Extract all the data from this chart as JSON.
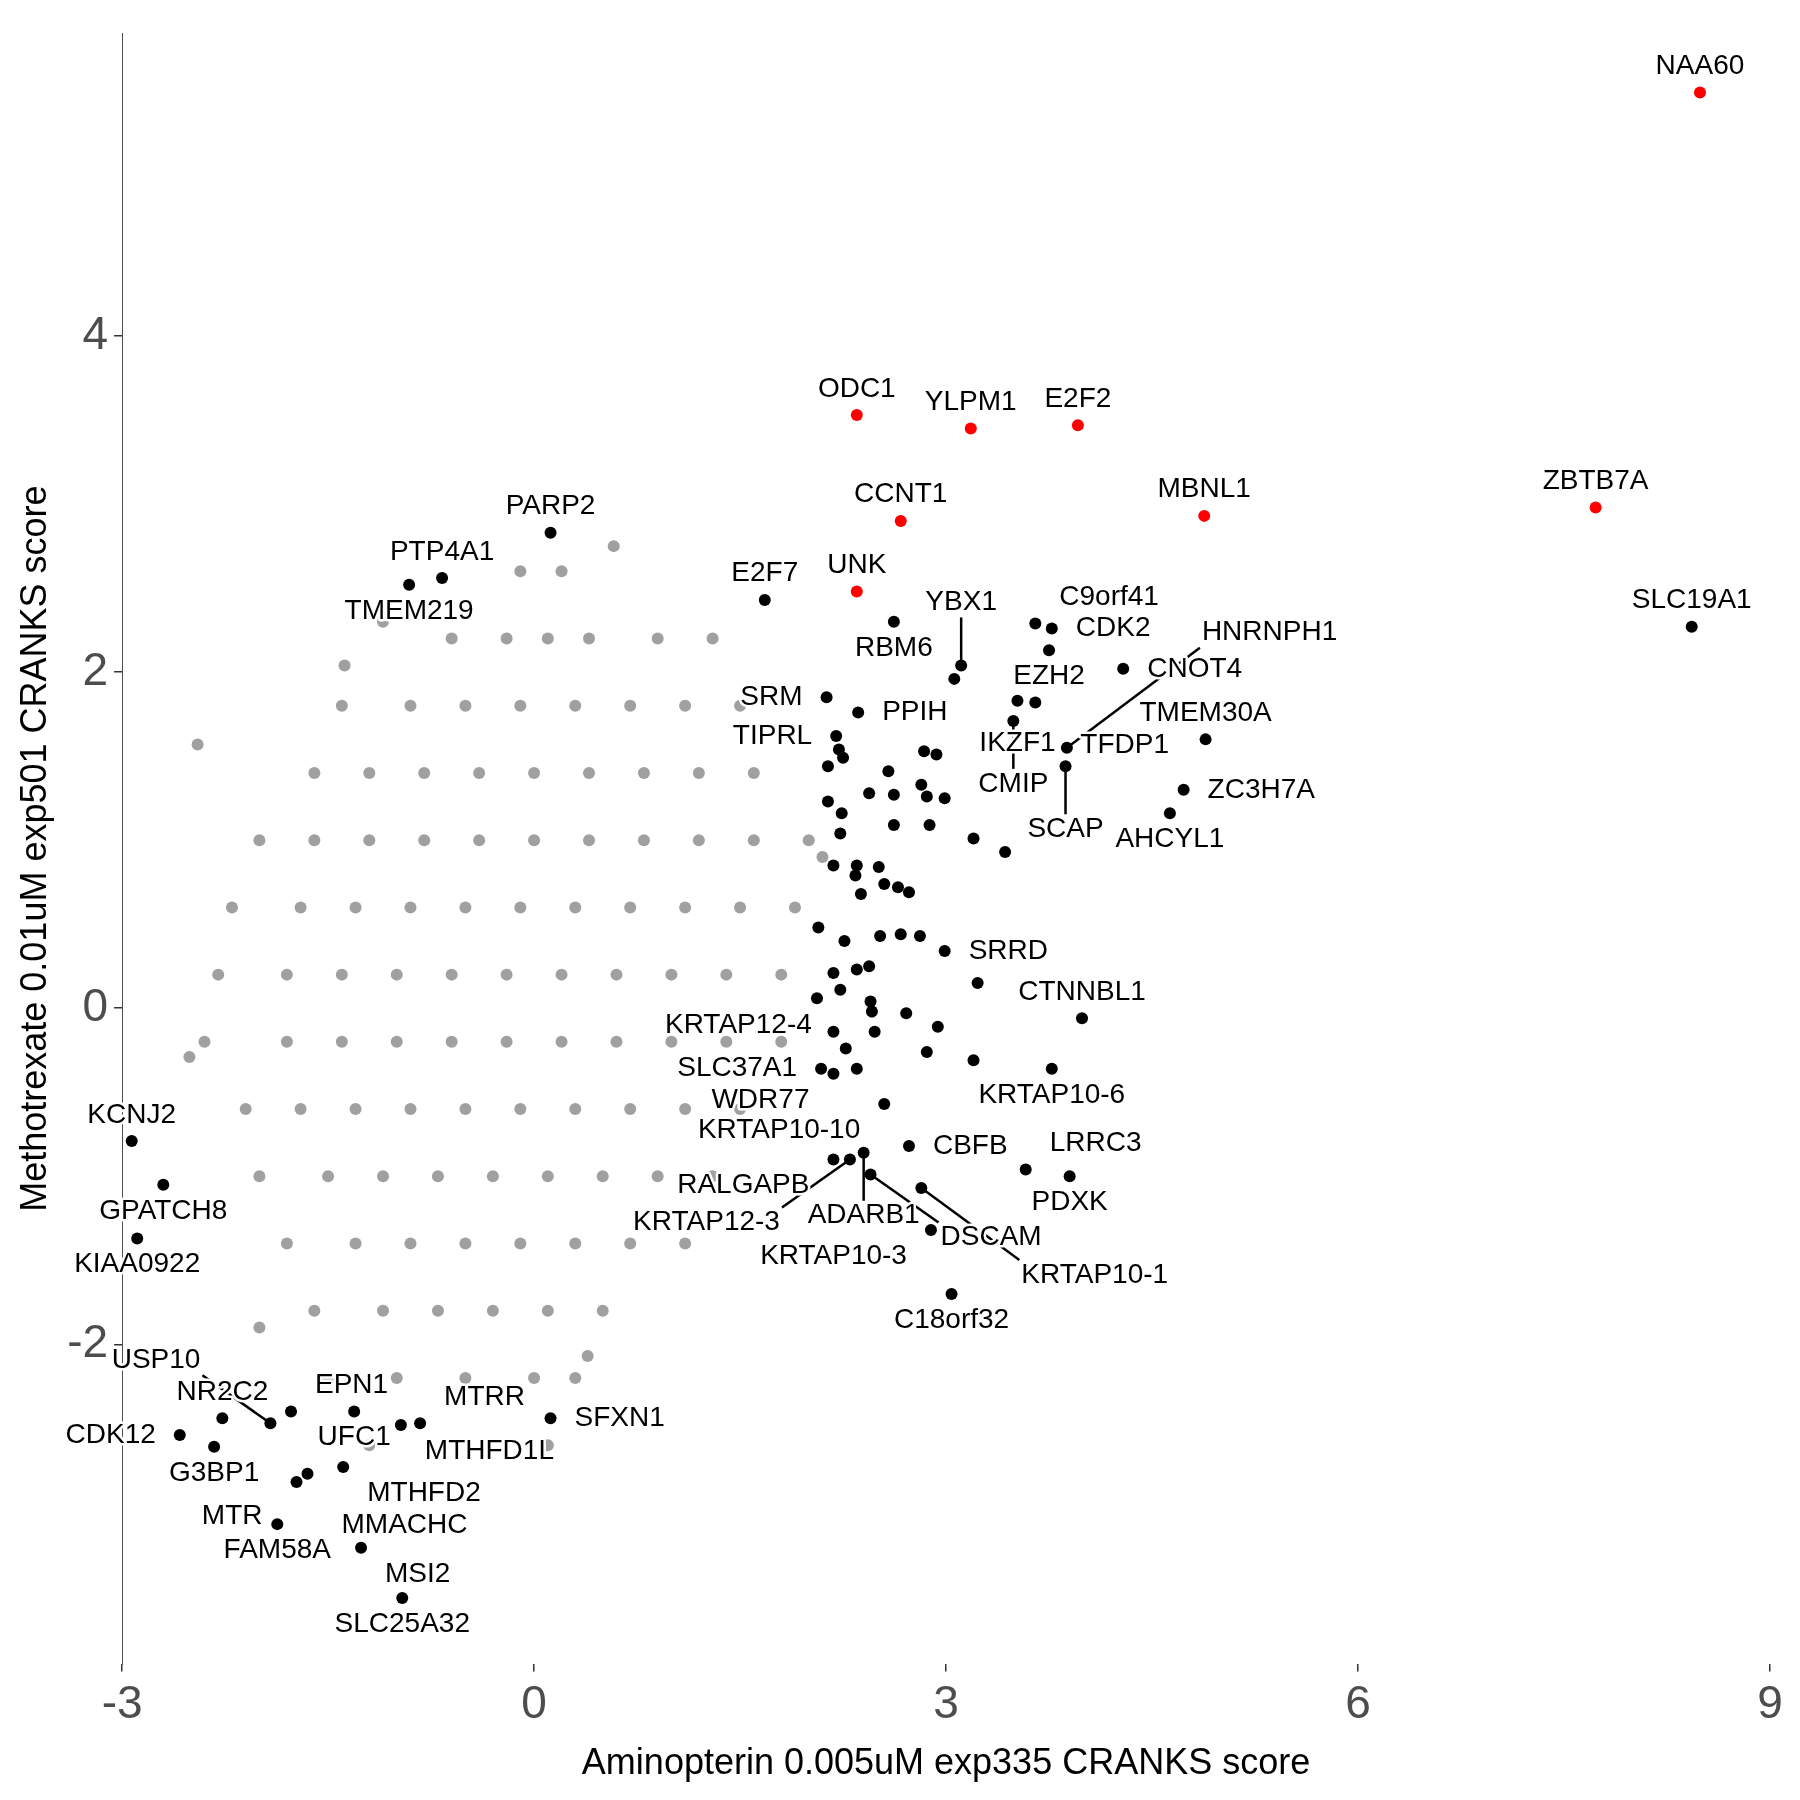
{
  "chart_data": {
    "type": "scatter",
    "xlabel": "Aminopterin 0.005uM exp335 CRANKS score",
    "ylabel": "Methotrexate 0.01uM exp501 CRANKS score",
    "xlim": [
      -3,
      9
    ],
    "ylim": [
      -3.9,
      5.8
    ],
    "xticks": [
      -3,
      0,
      3,
      6,
      9
    ],
    "yticks": [
      -2,
      0,
      2,
      4
    ],
    "grid": false,
    "legend": false,
    "marker": "circle",
    "series": [
      {
        "color": "#a0a0a0",
        "x": [
          -0.1,
          0.2,
          0.58,
          -0.6,
          -0.2,
          0.1,
          0.4,
          0.9,
          1.3,
          -1.4,
          -0.9,
          -0.5,
          -0.1,
          0.3,
          0.7,
          1.1,
          1.5,
          -1.6,
          -1.2,
          -0.8,
          -0.4,
          0,
          0.4,
          0.8,
          1.2,
          1.6,
          -2.0,
          -1.6,
          -1.2,
          -0.8,
          -0.4,
          0,
          0.4,
          0.8,
          1.2,
          1.6,
          2.0,
          -2.2,
          -1.7,
          -1.3,
          -0.9,
          -0.5,
          -0.1,
          0.3,
          0.7,
          1.1,
          1.5,
          1.9,
          -2.3,
          -1.8,
          -1.4,
          -1.0,
          -0.6,
          -0.2,
          0.2,
          0.6,
          1.0,
          1.4,
          1.8,
          -2.4,
          -1.8,
          -1.4,
          -1.0,
          -0.6,
          -0.2,
          0.2,
          0.6,
          1.0,
          1.4,
          1.8,
          -2.1,
          -1.7,
          -1.3,
          -0.9,
          -0.5,
          -0.1,
          0.3,
          0.7,
          1.1,
          1.5,
          -2.0,
          -1.5,
          -1.1,
          -0.7,
          -0.3,
          0.1,
          0.5,
          0.9,
          1.3,
          -1.8,
          -1.3,
          -0.9,
          -0.5,
          -0.1,
          0.3,
          0.7,
          1.1,
          -1.6,
          -1.1,
          -0.7,
          -0.3,
          0.1,
          0.5,
          -1.5,
          -1.0,
          -0.5,
          0.0,
          0.3,
          -1.2,
          0.1,
          -2.45,
          -1.38,
          -2.51,
          -2.0,
          0.39,
          2.1,
          -1.1
        ],
        "values": [
          2.6,
          2.6,
          2.75,
          2.2,
          2.2,
          2.2,
          2.2,
          2.2,
          2.2,
          1.8,
          1.8,
          1.8,
          1.8,
          1.8,
          1.8,
          1.8,
          1.8,
          1.4,
          1.4,
          1.4,
          1.4,
          1.4,
          1.4,
          1.4,
          1.4,
          1.4,
          1.0,
          1.0,
          1.0,
          1.0,
          1.0,
          1.0,
          1.0,
          1.0,
          1.0,
          1.0,
          1.0,
          0.6,
          0.6,
          0.6,
          0.6,
          0.6,
          0.6,
          0.6,
          0.6,
          0.6,
          0.6,
          0.6,
          0.2,
          0.2,
          0.2,
          0.2,
          0.2,
          0.2,
          0.2,
          0.2,
          0.2,
          0.2,
          0.2,
          -0.2,
          -0.2,
          -0.2,
          -0.2,
          -0.2,
          -0.2,
          -0.2,
          -0.2,
          -0.2,
          -0.2,
          -0.2,
          -0.6,
          -0.6,
          -0.6,
          -0.6,
          -0.6,
          -0.6,
          -0.6,
          -0.6,
          -0.6,
          -0.6,
          -1.0,
          -1.0,
          -1.0,
          -1.0,
          -1.0,
          -1.0,
          -1.0,
          -1.0,
          -1.0,
          -1.4,
          -1.4,
          -1.4,
          -1.4,
          -1.4,
          -1.4,
          -1.4,
          -1.4,
          -1.8,
          -1.8,
          -1.8,
          -1.8,
          -1.8,
          -1.8,
          -2.2,
          -2.2,
          -2.2,
          -2.2,
          -2.2,
          -2.6,
          -2.6,
          1.57,
          2.04,
          -0.29,
          -1.9,
          -2.07,
          0.9,
          2.3
        ]
      },
      {
        "color": "#000000",
        "x": [
          0.12,
          -0.67,
          -0.91,
          1.68,
          8.43,
          2.62,
          2.13,
          2.36,
          2.2,
          3.11,
          3.06,
          3.65,
          3.77,
          3.75,
          4.29,
          3.65,
          3.52,
          3.49,
          4.89,
          3.88,
          3.87,
          4.73,
          4.63,
          2.22,
          2.25,
          2.84,
          2.93,
          2.14,
          2.58,
          2.82,
          2.44,
          2.62,
          2.86,
          2.99,
          2.14,
          2.24,
          2.62,
          2.88,
          2.23,
          3.2,
          3.43,
          2.18,
          2.35,
          2.51,
          2.34,
          2.55,
          2.38,
          2.65,
          2.73,
          2.07,
          2.52,
          2.67,
          2.26,
          2.81,
          2.99,
          2.18,
          2.35,
          2.44,
          3.23,
          2.06,
          2.23,
          2.45,
          2.46,
          2.71,
          2.94,
          2.18,
          2.48,
          2.27,
          2.86,
          3.2,
          3.99,
          3.77,
          2.09,
          2.18,
          2.35,
          2.55,
          2.18,
          2.3,
          2.4,
          2.45,
          2.73,
          3.58,
          3.9,
          2.82,
          2.89,
          3.04,
          -2.93,
          -2.7,
          -2.89,
          -2.27,
          -2.58,
          -2.33,
          -1.77,
          -1.92,
          -1.31,
          -0.97,
          -0.83,
          -1.39,
          -1.73,
          -1.87,
          -1.26,
          -1.65,
          0.12,
          -0.96
        ],
        "values": [
          2.83,
          2.56,
          2.52,
          2.43,
          2.27,
          2.3,
          1.85,
          1.76,
          1.62,
          2.04,
          1.96,
          2.29,
          2.26,
          2.13,
          2.02,
          1.82,
          1.83,
          1.71,
          1.6,
          1.55,
          1.44,
          1.3,
          1.16,
          1.54,
          1.49,
          1.53,
          1.51,
          1.44,
          1.41,
          1.33,
          1.28,
          1.27,
          1.26,
          1.25,
          1.23,
          1.16,
          1.09,
          1.09,
          1.04,
          1.01,
          0.93,
          0.85,
          0.85,
          0.84,
          0.79,
          0.74,
          0.68,
          0.72,
          0.69,
          0.48,
          0.43,
          0.44,
          0.4,
          0.43,
          0.34,
          0.21,
          0.23,
          0.25,
          0.15,
          0.06,
          0.11,
          0.04,
          -0.02,
          -0.03,
          -0.11,
          -0.14,
          -0.14,
          -0.24,
          -0.26,
          -0.31,
          -0.06,
          -0.36,
          -0.36,
          -0.39,
          -0.36,
          -0.57,
          -0.9,
          -0.9,
          -0.86,
          -0.99,
          -0.82,
          -0.96,
          -1.0,
          -1.07,
          -1.32,
          -1.7,
          -0.79,
          -1.05,
          -1.37,
          -2.44,
          -2.54,
          -2.61,
          -2.4,
          -2.47,
          -2.4,
          -2.48,
          -2.47,
          -2.73,
          -2.82,
          -3.07,
          -3.21,
          -2.77,
          -2.44,
          -3.51
        ]
      },
      {
        "color": "#ff0000",
        "x": [
          8.49,
          2.35,
          3.18,
          3.96,
          4.88,
          7.73,
          2.67,
          2.35
        ],
        "values": [
          5.45,
          3.53,
          3.45,
          3.47,
          2.93,
          2.98,
          2.9,
          2.48
        ]
      }
    ],
    "annotations": [
      {
        "text": "NAA60",
        "x": 8.49,
        "y": 5.45
      },
      {
        "text": "ODC1",
        "x": 2.35,
        "y": 3.53
      },
      {
        "text": "YLPM1",
        "x": 3.18,
        "y": 3.45
      },
      {
        "text": "E2F2",
        "x": 3.96,
        "y": 3.47
      },
      {
        "text": "MBNL1",
        "x": 4.88,
        "y": 2.93
      },
      {
        "text": "ZBTB7A",
        "x": 7.73,
        "y": 2.98
      },
      {
        "text": "CCNT1",
        "x": 2.67,
        "y": 2.9
      },
      {
        "text": "UNK",
        "x": 2.35,
        "y": 2.48
      },
      {
        "text": "PARP2",
        "x": 0.12,
        "y": 2.83
      },
      {
        "text": "PTP4A1",
        "x": -0.67,
        "y": 2.56
      },
      {
        "text": "TMEM219",
        "x": -0.91,
        "y": 2.52
      },
      {
        "text": "E2F7",
        "x": 1.68,
        "y": 2.43
      },
      {
        "text": "SLC19A1",
        "x": 8.43,
        "y": 2.27
      },
      {
        "text": "RBM6",
        "x": 2.62,
        "y": 2.3
      },
      {
        "text": "SRM",
        "x": 2.13,
        "y": 1.85
      },
      {
        "text": "PPIH",
        "x": 2.36,
        "y": 1.76
      },
      {
        "text": "TIPRL",
        "x": 2.2,
        "y": 1.62
      },
      {
        "text": "YBX1",
        "x": 3.11,
        "y": 2.04
      },
      {
        "text": "C9orf41",
        "x": 3.65,
        "y": 2.29
      },
      {
        "text": "CDK2",
        "x": 3.77,
        "y": 2.26
      },
      {
        "text": "EZH2",
        "x": 3.75,
        "y": 2.13
      },
      {
        "text": "CNOT4",
        "x": 4.29,
        "y": 2.02
      },
      {
        "text": "TFDP1",
        "x": 3.65,
        "y": 1.82
      },
      {
        "text": "IKZF1",
        "x": 3.52,
        "y": 1.83
      },
      {
        "text": "CMIP",
        "x": 3.49,
        "y": 1.71
      },
      {
        "text": "TMEM30A",
        "x": 4.89,
        "y": 1.6
      },
      {
        "text": "HNRNPH1",
        "x": 3.88,
        "y": 1.55
      },
      {
        "text": "SCAP",
        "x": 3.87,
        "y": 1.44
      },
      {
        "text": "ZC3H7A",
        "x": 4.73,
        "y": 1.3
      },
      {
        "text": "AHCYL1",
        "x": 4.63,
        "y": 1.16
      },
      {
        "text": "SRRD",
        "x": 2.99,
        "y": 0.34
      },
      {
        "text": "CTNNBL1",
        "x": 3.99,
        "y": -0.06
      },
      {
        "text": "KRTAP10-6",
        "x": 3.77,
        "y": -0.36
      },
      {
        "text": "SLC37A1",
        "x": 2.09,
        "y": -0.36
      },
      {
        "text": "WDR77",
        "x": 2.18,
        "y": -0.39
      },
      {
        "text": "KRTAP12-4",
        "x": 2.35,
        "y": -0.36
      },
      {
        "text": "KRTAP10-10",
        "x": 2.55,
        "y": -0.57
      },
      {
        "text": "RALGAPB",
        "x": 2.18,
        "y": -0.9
      },
      {
        "text": "KRTAP12-3",
        "x": 2.3,
        "y": -0.9
      },
      {
        "text": "ADARB1",
        "x": 2.4,
        "y": -0.86
      },
      {
        "text": "DSCAM",
        "x": 2.45,
        "y": -0.99
      },
      {
        "text": "CBFB",
        "x": 2.73,
        "y": -0.82
      },
      {
        "text": "LRRC3",
        "x": 3.58,
        "y": -0.96
      },
      {
        "text": "PDXK",
        "x": 3.9,
        "y": -1.0
      },
      {
        "text": "KRTAP10-1",
        "x": 2.82,
        "y": -1.07
      },
      {
        "text": "KRTAP10-3",
        "x": 2.89,
        "y": -1.32
      },
      {
        "text": "C18orf32",
        "x": 3.04,
        "y": -1.7
      },
      {
        "text": "KCNJ2",
        "x": -2.93,
        "y": -0.79
      },
      {
        "text": "GPATCH8",
        "x": -2.7,
        "y": -1.05
      },
      {
        "text": "KIAA0922",
        "x": -2.89,
        "y": -1.37
      },
      {
        "text": "NR2C2",
        "x": -2.27,
        "y": -2.44
      },
      {
        "text": "CDK12",
        "x": -2.58,
        "y": -2.54
      },
      {
        "text": "G3BP1",
        "x": -2.33,
        "y": -2.61
      },
      {
        "text": "EPN1",
        "x": -1.77,
        "y": -2.4
      },
      {
        "text": "USP10",
        "x": -1.92,
        "y": -2.47
      },
      {
        "text": "UFC1",
        "x": -1.31,
        "y": -2.4
      },
      {
        "text": "MTHFD1L",
        "x": -0.97,
        "y": -2.48
      },
      {
        "text": "MTRR",
        "x": -0.83,
        "y": -2.47
      },
      {
        "text": "MTHFD2",
        "x": -1.39,
        "y": -2.73
      },
      {
        "text": "MMACHC",
        "x": -1.73,
        "y": -2.82
      },
      {
        "text": "FAM58A",
        "x": -1.87,
        "y": -3.07
      },
      {
        "text": "MSI2",
        "x": -1.26,
        "y": -3.21
      },
      {
        "text": "MTR",
        "x": -1.65,
        "y": -2.77
      },
      {
        "text": "SFXN1",
        "x": 0.12,
        "y": -2.44
      },
      {
        "text": "SLC25A32",
        "x": -0.96,
        "y": -3.51
      }
    ]
  }
}
